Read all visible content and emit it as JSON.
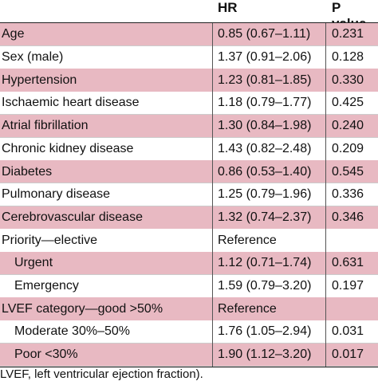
{
  "table": {
    "headers": {
      "hr": "HR",
      "p": "P value"
    },
    "rows": [
      {
        "label": "Age",
        "hr": "0.85 (0.67–1.11)",
        "p": "0.231",
        "indent": false,
        "shade": "pink"
      },
      {
        "label": "Sex (male)",
        "hr": "1.37 (0.91–2.06)",
        "p": "0.128",
        "indent": false,
        "shade": "white"
      },
      {
        "label": "Hypertension",
        "hr": "1.23 (0.81–1.85)",
        "p": "0.330",
        "indent": false,
        "shade": "pink"
      },
      {
        "label": "Ischaemic heart disease",
        "hr": "1.18 (0.79–1.77)",
        "p": "0.425",
        "indent": false,
        "shade": "white"
      },
      {
        "label": "Atrial fibrillation",
        "hr": "1.30 (0.84–1.98)",
        "p": "0.240",
        "indent": false,
        "shade": "pink"
      },
      {
        "label": "Chronic kidney disease",
        "hr": "1.43 (0.82–2.48)",
        "p": "0.209",
        "indent": false,
        "shade": "white"
      },
      {
        "label": "Diabetes",
        "hr": "0.86 (0.53–1.40)",
        "p": "0.545",
        "indent": false,
        "shade": "pink"
      },
      {
        "label": "Pulmonary disease",
        "hr": "1.25 (0.79–1.96)",
        "p": "0.336",
        "indent": false,
        "shade": "white"
      },
      {
        "label": "Cerebrovascular disease",
        "hr": "1.32 (0.74–2.37)",
        "p": "0.346",
        "indent": false,
        "shade": "pink"
      },
      {
        "label": "Priority—elective",
        "hr": "Reference",
        "p": "",
        "indent": false,
        "shade": "white"
      },
      {
        "label": "Urgent",
        "hr": "1.12 (0.71–1.74)",
        "p": "0.631",
        "indent": true,
        "shade": "pink"
      },
      {
        "label": "Emergency",
        "hr": "1.59 (0.79–3.20)",
        "p": "0.197",
        "indent": true,
        "shade": "white"
      },
      {
        "label": "LVEF category—good >50%",
        "hr": "Reference",
        "p": "",
        "indent": false,
        "shade": "pink"
      },
      {
        "label": "Moderate 30%–50%",
        "hr": "1.76 (1.05–2.94)",
        "p": "0.031",
        "indent": true,
        "shade": "white"
      },
      {
        "label": "Poor <30%",
        "hr": "1.90 (1.12–3.20)",
        "p": "0.017",
        "indent": true,
        "shade": "pink"
      }
    ]
  },
  "footnote": "LVEF, left ventricular ejection fraction).",
  "colors": {
    "pink": "#e8b9c2",
    "white": "#ffffff"
  }
}
